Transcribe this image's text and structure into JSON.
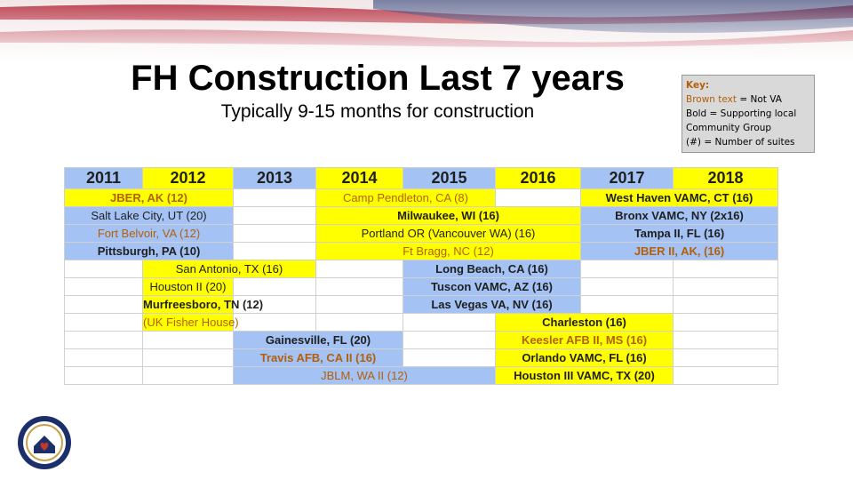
{
  "title": "FH Construction Last 7 years",
  "subtitle": "Typically 9-15 months for construction",
  "key": {
    "title": "Key:",
    "brown_term": "Brown text",
    "brown_desc": "= Not VA",
    "bold_line": "Bold = Supporting local Community Group",
    "suites_line": "(#) = Number of suites"
  },
  "table": {
    "headers": [
      "2011",
      "2012",
      "2013",
      "2014",
      "2015",
      "2016",
      "2017",
      "2018"
    ],
    "rows": [
      [
        "JBER, AK (12)",
        "Camp Pendleton, CA (8)",
        "West Haven VAMC, CT (16)"
      ],
      [
        "Salt Lake City, UT (20)",
        "Milwaukee, WI (16)",
        "Bronx VAMC, NY (2x16)"
      ],
      [
        "Fort Belvoir, VA (12)",
        "Portland OR (Vancouver WA) (16)",
        "Tampa II, FL (16)"
      ],
      [
        "Pittsburgh, PA (10)",
        "Ft Bragg, NC (12)",
        "JBER II, AK, (16)"
      ],
      [
        "San Antonio, TX (16)",
        "Long Beach, CA (16)"
      ],
      [
        "Houston II (20)",
        "Tuscon VAMC, AZ (16)"
      ],
      [
        "Murfreesboro, TN (12)",
        "Las Vegas VA, NV (16)"
      ],
      [
        "(UK Fisher House)",
        "Charleston (16)"
      ],
      [
        "Gainesville, FL (20)",
        "Keesler AFB II, MS (16)"
      ],
      [
        "Travis AFB, CA II (16)",
        "Orlando VAMC, FL (16)"
      ],
      [
        "JBLM, WA II (12)",
        "Houston III  VAMC, TX (20)"
      ]
    ]
  }
}
